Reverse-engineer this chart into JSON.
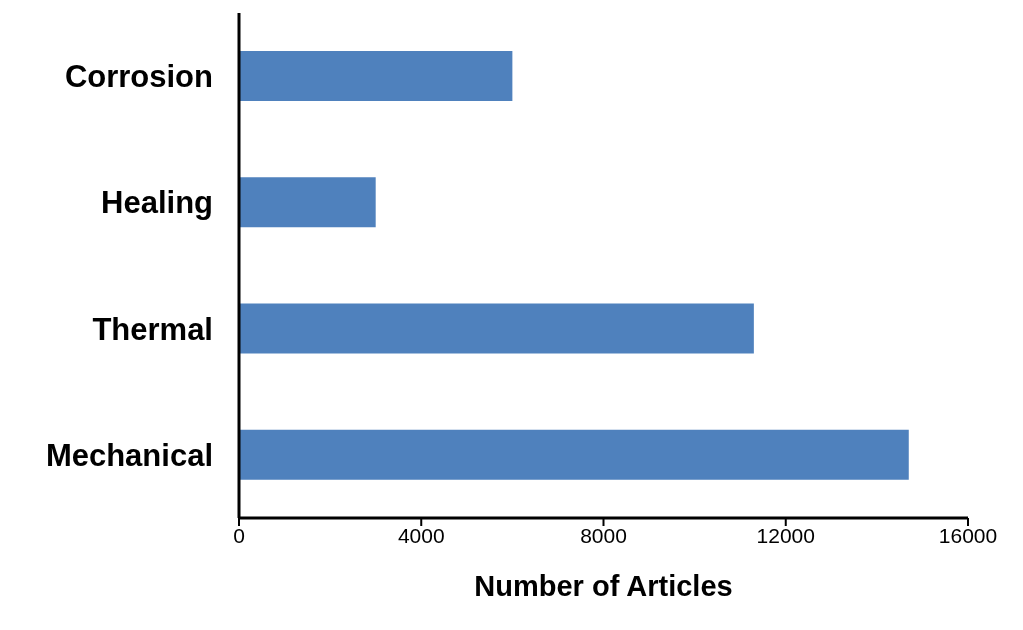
{
  "chart_data": {
    "type": "bar",
    "orientation": "horizontal",
    "categories": [
      "Corrosion",
      "Healing",
      "Thermal",
      "Mechanical"
    ],
    "values": [
      6000,
      3000,
      11300,
      14700
    ],
    "color": "#4f81bd",
    "xlabel": "Number of Articles",
    "xlim": [
      0,
      16000
    ],
    "xticks": [
      0,
      4000,
      8000,
      12000,
      16000
    ],
    "grid": false,
    "legend": false
  }
}
